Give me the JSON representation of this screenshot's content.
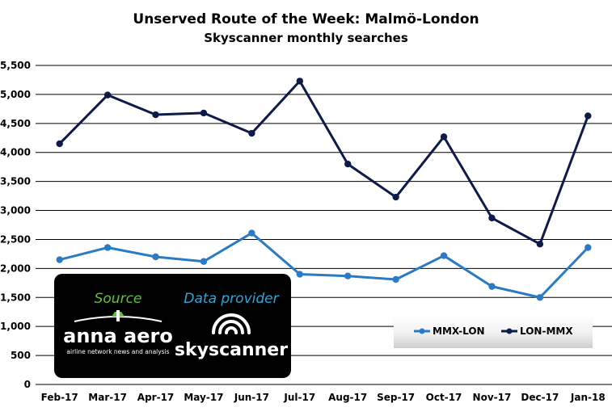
{
  "chart_data": {
    "type": "line",
    "title": "Unserved Route of the Week: Malmö-London",
    "subtitle": "Skyscanner monthly searches",
    "xlabel": "",
    "ylabel": "",
    "categories": [
      "Feb-17",
      "Mar-17",
      "Apr-17",
      "May-17",
      "Jun-17",
      "Jul-17",
      "Aug-17",
      "Sep-17",
      "Oct-17",
      "Nov-17",
      "Dec-17",
      "Jan-18"
    ],
    "ylim": [
      0,
      5500
    ],
    "yticks": [
      0,
      500,
      1000,
      1500,
      2000,
      2500,
      3000,
      3500,
      4000,
      4500,
      5000,
      5500
    ],
    "ytick_labels": [
      "0",
      "500",
      "1,000",
      "1,500",
      "2,000",
      "2,500",
      "3,000",
      "3,500",
      "4,000",
      "4,500",
      "5,000",
      "5,500"
    ],
    "grid": true,
    "legend_position": "bottom-right",
    "series": [
      {
        "name": "MMX-LON",
        "color": "#2a7bc4",
        "values": [
          2150,
          2360,
          2200,
          2120,
          2610,
          1900,
          1870,
          1810,
          2220,
          1690,
          1500,
          2360
        ]
      },
      {
        "name": "LON-MMX",
        "color": "#0e1a4a",
        "values": [
          4150,
          4990,
          4650,
          4680,
          4330,
          5230,
          3800,
          3230,
          4270,
          2870,
          2420,
          4630
        ]
      }
    ]
  },
  "overlay": {
    "source_label": "Source",
    "source_brand": "anna aero",
    "source_tagline": "airline network news and analysis",
    "provider_label": "Data provider",
    "provider_brand": "skyscanner",
    "label_colors": {
      "source": "#5fc43a",
      "provider": "#29a8d8"
    }
  }
}
